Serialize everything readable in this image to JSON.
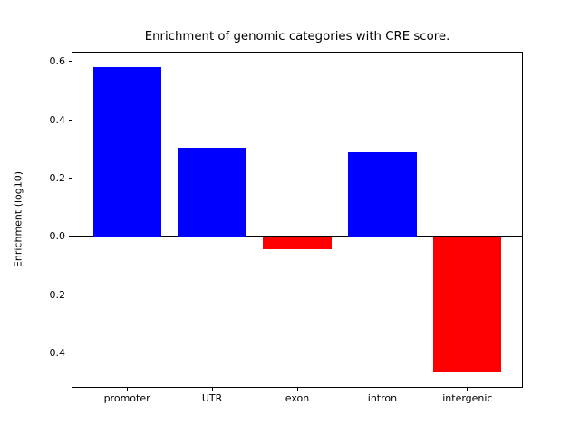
{
  "figure": {
    "background": "#ffffff"
  },
  "chart_data": {
    "type": "bar",
    "title": "Enrichment of genomic categories with CRE score.",
    "ylabel": "Enrichment (log10)",
    "xlabel": "",
    "categories": [
      "promoter",
      "UTR",
      "exon",
      "intron",
      "intergenic"
    ],
    "values": [
      0.58,
      0.305,
      -0.045,
      0.29,
      -0.465
    ],
    "bar_colors": [
      "#0000ff",
      "#0000ff",
      "#ff0000",
      "#0000ff",
      "#ff0000"
    ],
    "positive_color": "#0000ff",
    "negative_color": "#ff0000",
    "zero_line_color": "#000000",
    "yticks": [
      {
        "value": 0.6,
        "label": "0.6"
      },
      {
        "value": 0.4,
        "label": "0.4"
      },
      {
        "value": 0.2,
        "label": "0.2"
      },
      {
        "value": 0.0,
        "label": "0.0"
      },
      {
        "value": -0.2,
        "label": "−0.2"
      },
      {
        "value": -0.4,
        "label": "−0.4"
      }
    ],
    "ylim": [
      -0.517,
      0.632
    ],
    "xlim": [
      -0.64,
      4.64
    ],
    "bar_width": 0.8,
    "grid": false,
    "legend": null,
    "zero_line": true
  }
}
